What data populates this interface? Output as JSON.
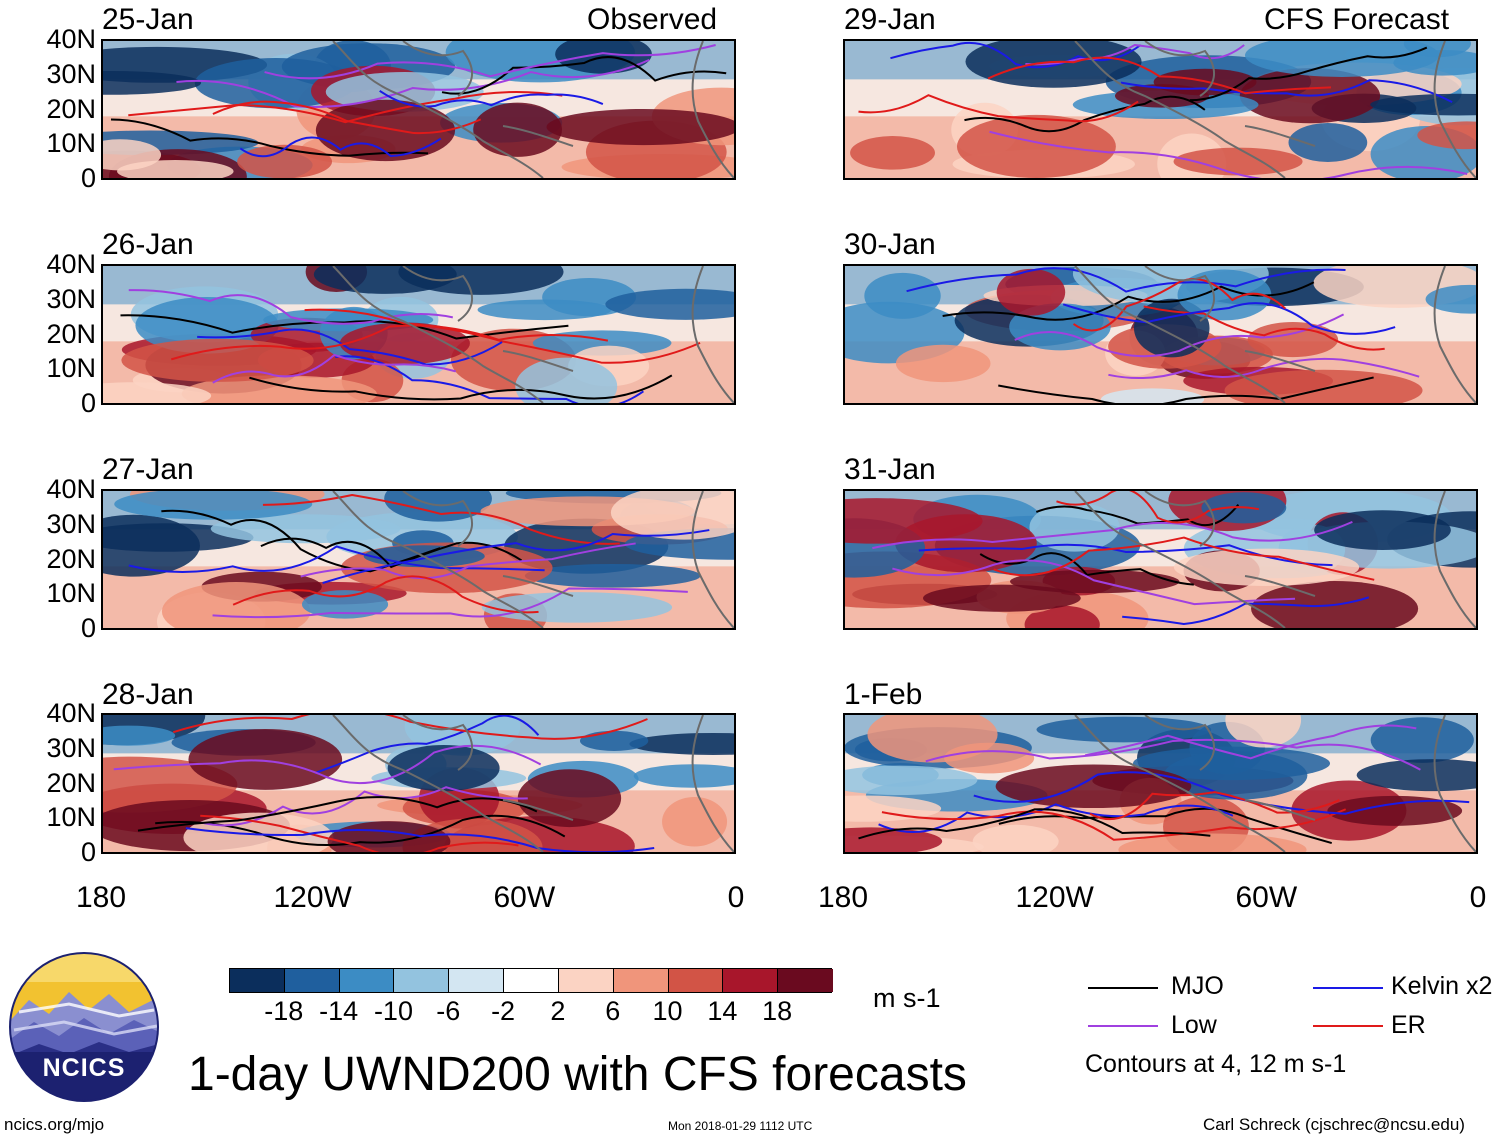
{
  "titles": {
    "main": "1-day UWND200 with CFS forecasts",
    "observed": "Observed",
    "forecast": "CFS Forecast"
  },
  "panels": {
    "left": [
      "25-Jan",
      "26-Jan",
      "27-Jan",
      "28-Jan"
    ],
    "right": [
      "29-Jan",
      "30-Jan",
      "31-Jan",
      "1-Feb"
    ]
  },
  "y_labels": [
    "40N",
    "30N",
    "20N",
    "10N",
    "0"
  ],
  "x_labels": [
    "180",
    "120W",
    "60W",
    "0"
  ],
  "colorbar": {
    "labels": [
      "-18",
      "-14",
      "-10",
      "-6",
      "-2",
      "2",
      "6",
      "10",
      "14",
      "18"
    ],
    "colors": [
      "#0b2e5c",
      "#1f5f9e",
      "#3c8cc4",
      "#93c3df",
      "#d3e6f2",
      "#ffffff",
      "#fbd3c3",
      "#f0957b",
      "#d25446",
      "#a8162b",
      "#6a0a1f"
    ],
    "units": "m s-1"
  },
  "legend": {
    "items": [
      {
        "label": "MJO",
        "color": "#000000"
      },
      {
        "label": "Kelvin x2",
        "color": "#1a1ae6"
      },
      {
        "label": "Low",
        "color": "#a040e0"
      },
      {
        "label": "ER",
        "color": "#e01a1a"
      }
    ],
    "note": "Contours at 4, 12 m s-1"
  },
  "logo": {
    "text": "NCICS"
  },
  "footer": {
    "left": "ncics.org/mjo",
    "center": "Mon 2018-01-29 1112 UTC",
    "right": "Carl Schreck (cjschrec@ncsu.edu)"
  }
}
